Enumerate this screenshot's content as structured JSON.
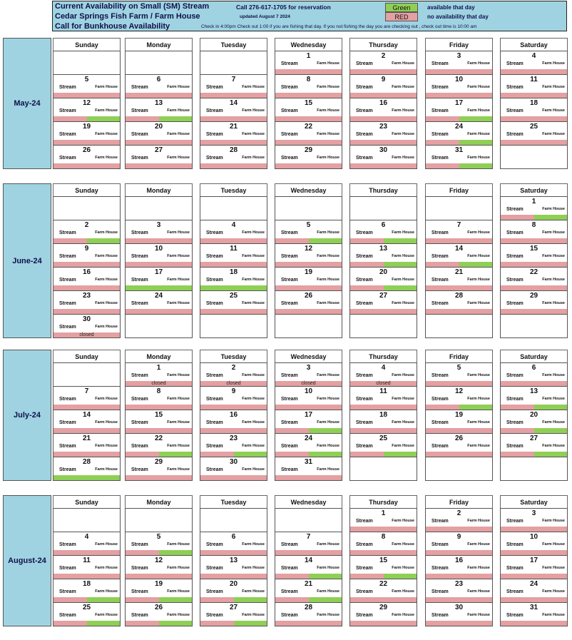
{
  "colors": {
    "green": "#8fcf55",
    "red": "#e4a0a2",
    "header_bg": "#9fd3e2"
  },
  "header": {
    "title1": "Current Availability on Small (SM) Stream",
    "title2": "Cedar Springs Fish Farm / Farm House",
    "title3": "Call for Bunkhouse Availability",
    "call": "Call 276-617-1705 for reservation",
    "updated": "updated   August 7 2024",
    "checkin": "Check in 4:00pm Check out 1:00 if you are fishing that day. If you not fishing the day you are checking out , check out time is 10:00 am",
    "legend_green_label": "Green",
    "legend_green_text": "available that day",
    "legend_red_label": "RED",
    "legend_red_text": "no availability that day"
  },
  "day_headers": [
    "Sunday",
    "Monday",
    "Tuesday",
    "Wednesday",
    "Thursday",
    "Friday",
    "Saturday"
  ],
  "cell_labels": {
    "stream": "Stream",
    "farm_house": "Farm House"
  },
  "months": [
    {
      "label": "May-24",
      "weeks": [
        [
          null,
          null,
          null,
          {
            "d": "1",
            "s": "r",
            "f": "r"
          },
          {
            "d": "2",
            "s": "r",
            "f": "r"
          },
          {
            "d": "3",
            "s": "r",
            "f": "r"
          },
          {
            "d": "4",
            "s": "r",
            "f": "r"
          }
        ],
        [
          {
            "d": "5",
            "s": "r",
            "f": "r"
          },
          {
            "d": "6",
            "s": "r",
            "f": "r"
          },
          {
            "d": "7",
            "s": "r",
            "f": "r"
          },
          {
            "d": "8",
            "s": "r",
            "f": "r"
          },
          {
            "d": "9",
            "s": "r",
            "f": "r"
          },
          {
            "d": "10",
            "s": "r",
            "f": "r"
          },
          {
            "d": "11",
            "s": "r",
            "f": "r"
          }
        ],
        [
          {
            "d": "12",
            "s": "r",
            "f": "g"
          },
          {
            "d": "13",
            "s": "r",
            "f": "g"
          },
          {
            "d": "14",
            "s": "r",
            "f": "r"
          },
          {
            "d": "15",
            "s": "r",
            "f": "r"
          },
          {
            "d": "16",
            "s": "r",
            "f": "r"
          },
          {
            "d": "17",
            "s": "r",
            "f": "g"
          },
          {
            "d": "18",
            "s": "r",
            "f": "r"
          }
        ],
        [
          {
            "d": "19",
            "s": "r",
            "f": "r"
          },
          {
            "d": "20",
            "s": "r",
            "f": "r"
          },
          {
            "d": "21",
            "s": "r",
            "f": "r"
          },
          {
            "d": "22",
            "s": "r",
            "f": "r"
          },
          {
            "d": "23",
            "s": "r",
            "f": "r"
          },
          {
            "d": "24",
            "s": "r",
            "f": "g"
          },
          {
            "d": "25",
            "s": "r",
            "f": "r"
          }
        ],
        [
          {
            "d": "26",
            "s": "r",
            "f": "r"
          },
          {
            "d": "27",
            "s": "r",
            "f": "r"
          },
          {
            "d": "28",
            "s": "r",
            "f": "r"
          },
          {
            "d": "29",
            "s": "r",
            "f": "r"
          },
          {
            "d": "30",
            "s": "r",
            "f": "r"
          },
          {
            "d": "31",
            "s": "r",
            "f": "g"
          },
          null
        ]
      ]
    },
    {
      "label": "June-24",
      "weeks": [
        [
          null,
          null,
          null,
          null,
          null,
          null,
          {
            "d": "1",
            "s": "r",
            "f": "g"
          }
        ],
        [
          {
            "d": "2",
            "s": "r",
            "f": "g"
          },
          {
            "d": "3",
            "s": "r",
            "f": "r"
          },
          {
            "d": "4",
            "s": "r",
            "f": "r"
          },
          {
            "d": "5",
            "s": "r",
            "f": "g"
          },
          {
            "d": "6",
            "s": "r",
            "f": "g"
          },
          {
            "d": "7",
            "s": "r",
            "f": "r"
          },
          {
            "d": "8",
            "s": "r",
            "f": "r"
          }
        ],
        [
          {
            "d": "9",
            "s": "r",
            "f": "r"
          },
          {
            "d": "10",
            "s": "r",
            "f": "r"
          },
          {
            "d": "11",
            "s": "r",
            "f": "r"
          },
          {
            "d": "12",
            "s": "r",
            "f": "r"
          },
          {
            "d": "13",
            "s": "r",
            "f": "g"
          },
          {
            "d": "14",
            "s": "r",
            "f": "g"
          },
          {
            "d": "15",
            "s": "r",
            "f": "r"
          }
        ],
        [
          {
            "d": "16",
            "s": "r",
            "f": "r"
          },
          {
            "d": "17",
            "s": "g",
            "f": "g"
          },
          {
            "d": "18",
            "s": "g",
            "f": "g"
          },
          {
            "d": "19",
            "s": "r",
            "f": "r"
          },
          {
            "d": "20",
            "s": "r",
            "f": "g"
          },
          {
            "d": "21",
            "s": "r",
            "f": "r"
          },
          {
            "d": "22",
            "s": "r",
            "f": "r"
          }
        ],
        [
          {
            "d": "23",
            "s": "r",
            "f": "r"
          },
          {
            "d": "24",
            "s": "r",
            "f": "r"
          },
          {
            "d": "25",
            "s": "r",
            "f": "r"
          },
          {
            "d": "26",
            "s": "r",
            "f": "r"
          },
          {
            "d": "27",
            "s": "r",
            "f": "r"
          },
          {
            "d": "28",
            "s": "r",
            "f": "r"
          },
          {
            "d": "29",
            "s": "r",
            "f": "r"
          }
        ],
        [
          {
            "d": "30",
            "s": "r",
            "f": "r",
            "note": "closed"
          },
          null,
          null,
          null,
          null,
          null,
          null
        ]
      ]
    },
    {
      "label": "July-24",
      "weeks": [
        [
          null,
          {
            "d": "1",
            "s": "r",
            "f": "r",
            "note": "closed"
          },
          {
            "d": "2",
            "s": "r",
            "f": "r",
            "note": "closed"
          },
          {
            "d": "3",
            "s": "r",
            "f": "r",
            "note": "closed"
          },
          {
            "d": "4",
            "s": "r",
            "f": "r",
            "note": "closed"
          },
          {
            "d": "5",
            "s": "r",
            "f": "r"
          },
          {
            "d": "6",
            "s": "r",
            "f": "r"
          }
        ],
        [
          {
            "d": "7",
            "s": "r",
            "f": "r"
          },
          {
            "d": "8",
            "s": "r",
            "f": "r"
          },
          {
            "d": "9",
            "s": "r",
            "f": "r"
          },
          {
            "d": "10",
            "s": "r",
            "f": "r"
          },
          {
            "d": "11",
            "s": "r",
            "f": "r"
          },
          {
            "d": "12",
            "s": "r",
            "f": "g"
          },
          {
            "d": "13",
            "s": "r",
            "f": "g"
          }
        ],
        [
          {
            "d": "14",
            "s": "r",
            "f": "r"
          },
          {
            "d": "15",
            "s": "r",
            "f": "r"
          },
          {
            "d": "16",
            "s": "r",
            "f": "r"
          },
          {
            "d": "17",
            "s": "r",
            "f": "g"
          },
          {
            "d": "18",
            "s": "r",
            "f": "r"
          },
          {
            "d": "19",
            "s": "r",
            "f": "r"
          },
          {
            "d": "20",
            "s": "r",
            "f": "g"
          }
        ],
        [
          {
            "d": "21",
            "s": "r",
            "f": "r"
          },
          {
            "d": "22",
            "s": "r",
            "f": "g"
          },
          {
            "d": "23",
            "s": "r",
            "f": "g"
          },
          {
            "d": "24",
            "s": "r",
            "f": "g"
          },
          {
            "d": "25",
            "s": "r",
            "f": "g"
          },
          {
            "d": "26",
            "s": "r",
            "f": "r"
          },
          {
            "d": "27",
            "s": "r",
            "f": "g"
          }
        ],
        [
          {
            "d": "28",
            "s": "g",
            "f": "g"
          },
          {
            "d": "29",
            "s": "r",
            "f": "r"
          },
          {
            "d": "30",
            "s": "r",
            "f": "r"
          },
          {
            "d": "31",
            "s": "r",
            "f": "r"
          },
          null,
          null,
          null
        ]
      ]
    },
    {
      "label": "August-24",
      "weeks": [
        [
          null,
          null,
          null,
          null,
          {
            "d": "1",
            "s": "r",
            "f": "r"
          },
          {
            "d": "2",
            "s": "r",
            "f": "r"
          },
          {
            "d": "3",
            "s": "r",
            "f": "r"
          }
        ],
        [
          {
            "d": "4",
            "s": "r",
            "f": "r"
          },
          {
            "d": "5",
            "s": "r",
            "f": "g"
          },
          {
            "d": "6",
            "s": "r",
            "f": "r"
          },
          {
            "d": "7",
            "s": "r",
            "f": "r"
          },
          {
            "d": "8",
            "s": "r",
            "f": "r"
          },
          {
            "d": "9",
            "s": "r",
            "f": "r"
          },
          {
            "d": "10",
            "s": "r",
            "f": "r"
          }
        ],
        [
          {
            "d": "11",
            "s": "r",
            "f": "r"
          },
          {
            "d": "12",
            "s": "r",
            "f": "r"
          },
          {
            "d": "13",
            "s": "r",
            "f": "r"
          },
          {
            "d": "14",
            "s": "r",
            "f": "g"
          },
          {
            "d": "15",
            "s": "r",
            "f": "g"
          },
          {
            "d": "16",
            "s": "r",
            "f": "r"
          },
          {
            "d": "17",
            "s": "r",
            "f": "r"
          }
        ],
        [
          {
            "d": "18",
            "s": "r",
            "f": "g"
          },
          {
            "d": "19",
            "s": "r",
            "f": "g"
          },
          {
            "d": "20",
            "s": "r",
            "f": "g"
          },
          {
            "d": "21",
            "s": "r",
            "f": "g"
          },
          {
            "d": "22",
            "s": "r",
            "f": "r"
          },
          {
            "d": "23",
            "s": "r",
            "f": "r"
          },
          {
            "d": "24",
            "s": "r",
            "f": "r"
          }
        ],
        [
          {
            "d": "25",
            "s": "r",
            "f": "g"
          },
          {
            "d": "26",
            "s": "r",
            "f": "g"
          },
          {
            "d": "27",
            "s": "r",
            "f": "g"
          },
          {
            "d": "28",
            "s": "r",
            "f": "r"
          },
          {
            "d": "29",
            "s": "r",
            "f": "r"
          },
          {
            "d": "30",
            "s": "r",
            "f": "r"
          },
          {
            "d": "31",
            "s": "r",
            "f": "r"
          }
        ]
      ]
    }
  ]
}
